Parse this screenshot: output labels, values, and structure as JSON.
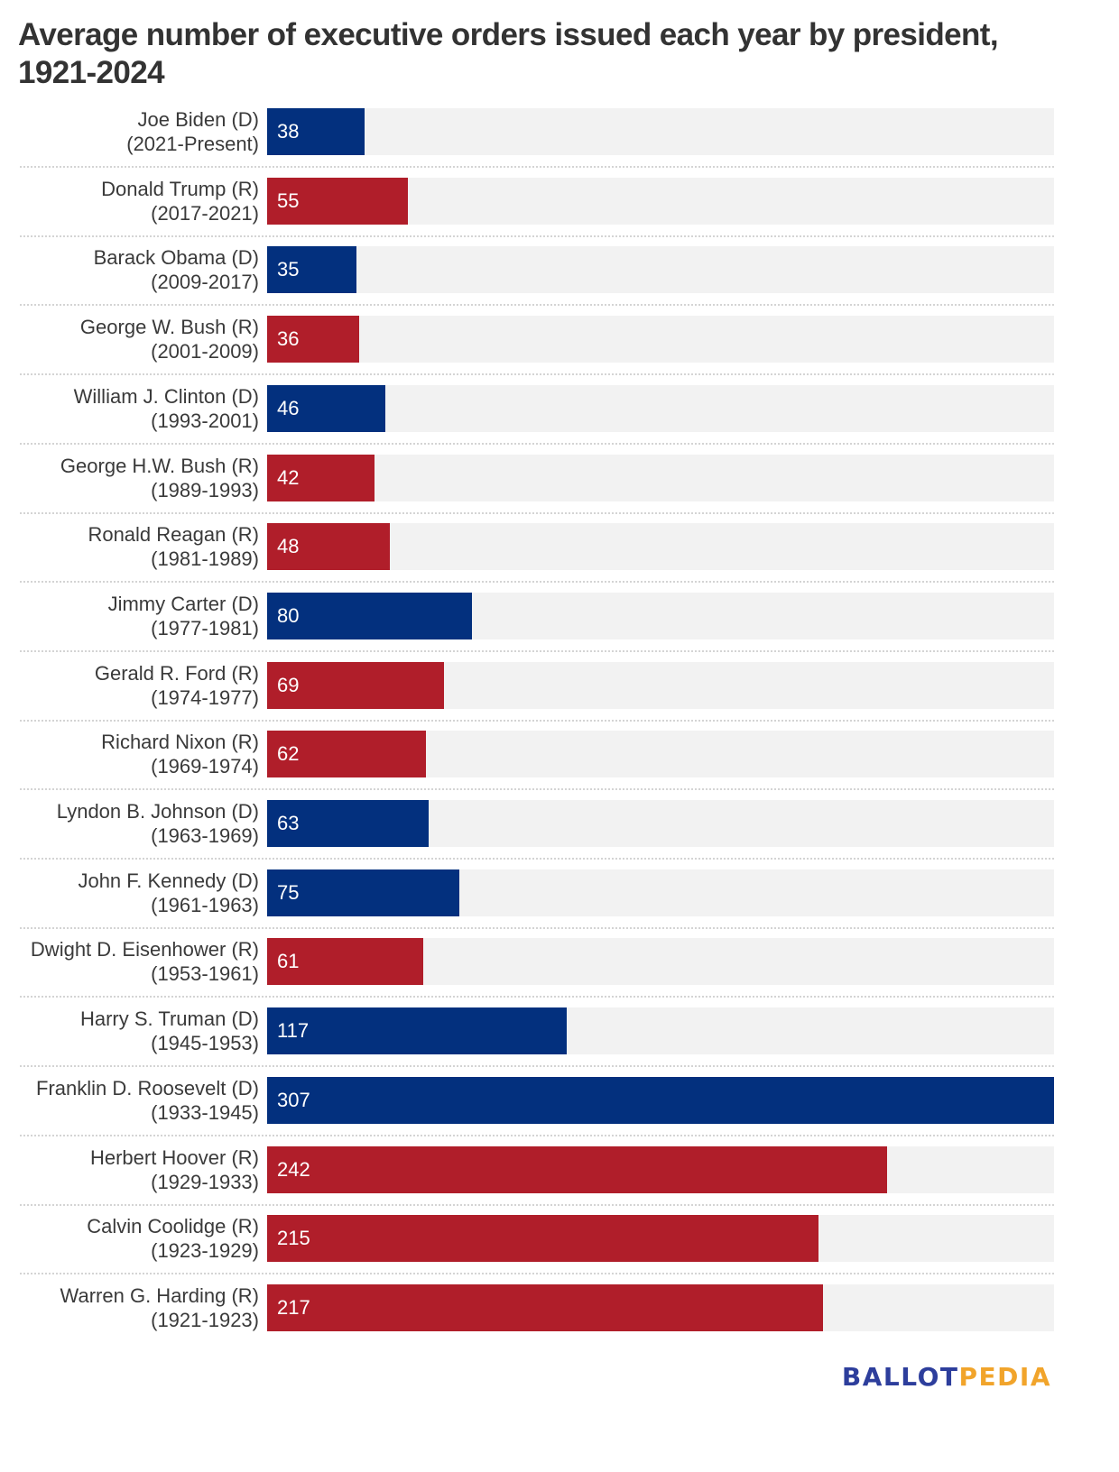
{
  "colors": {
    "D": "#03307e",
    "R": "#b01e2a",
    "track": "#f2f2f2"
  },
  "logo": {
    "part1": "BALLOT",
    "part2": "PEDIA"
  },
  "chart_data": {
    "type": "bar",
    "orientation": "horizontal",
    "title": "Average number of executive orders issued each year by president, 1921-2024",
    "xlabel": "",
    "ylabel": "",
    "xlim": [
      0,
      307
    ],
    "grid": false,
    "legend": "none",
    "categories": [
      {
        "name": "Joe Biden (D)",
        "term": "(2021-Present)",
        "party": "D",
        "value": 38
      },
      {
        "name": "Donald Trump (R)",
        "term": "(2017-2021)",
        "party": "R",
        "value": 55
      },
      {
        "name": "Barack Obama (D)",
        "term": "(2009-2017)",
        "party": "D",
        "value": 35
      },
      {
        "name": "George W. Bush (R)",
        "term": "(2001-2009)",
        "party": "R",
        "value": 36
      },
      {
        "name": "William J. Clinton (D)",
        "term": "(1993-2001)",
        "party": "D",
        "value": 46
      },
      {
        "name": "George H.W. Bush (R)",
        "term": "(1989-1993)",
        "party": "R",
        "value": 42
      },
      {
        "name": "Ronald Reagan (R)",
        "term": "(1981-1989)",
        "party": "R",
        "value": 48
      },
      {
        "name": "Jimmy Carter (D)",
        "term": "(1977-1981)",
        "party": "D",
        "value": 80
      },
      {
        "name": "Gerald R. Ford (R)",
        "term": "(1974-1977)",
        "party": "R",
        "value": 69
      },
      {
        "name": "Richard Nixon (R)",
        "term": "(1969-1974)",
        "party": "R",
        "value": 62
      },
      {
        "name": "Lyndon B. Johnson (D)",
        "term": "(1963-1969)",
        "party": "D",
        "value": 63
      },
      {
        "name": "John F. Kennedy (D)",
        "term": "(1961-1963)",
        "party": "D",
        "value": 75
      },
      {
        "name": "Dwight D. Eisenhower (R)",
        "term": "(1953-1961)",
        "party": "R",
        "value": 61
      },
      {
        "name": "Harry S. Truman (D)",
        "term": "(1945-1953)",
        "party": "D",
        "value": 117
      },
      {
        "name": "Franklin D. Roosevelt (D)",
        "term": "(1933-1945)",
        "party": "D",
        "value": 307
      },
      {
        "name": "Herbert Hoover (R)",
        "term": "(1929-1933)",
        "party": "R",
        "value": 242
      },
      {
        "name": "Calvin Coolidge (R)",
        "term": "(1923-1929)",
        "party": "R",
        "value": 215
      },
      {
        "name": "Warren G. Harding (R)",
        "term": "(1921-1923)",
        "party": "R",
        "value": 217
      }
    ]
  }
}
